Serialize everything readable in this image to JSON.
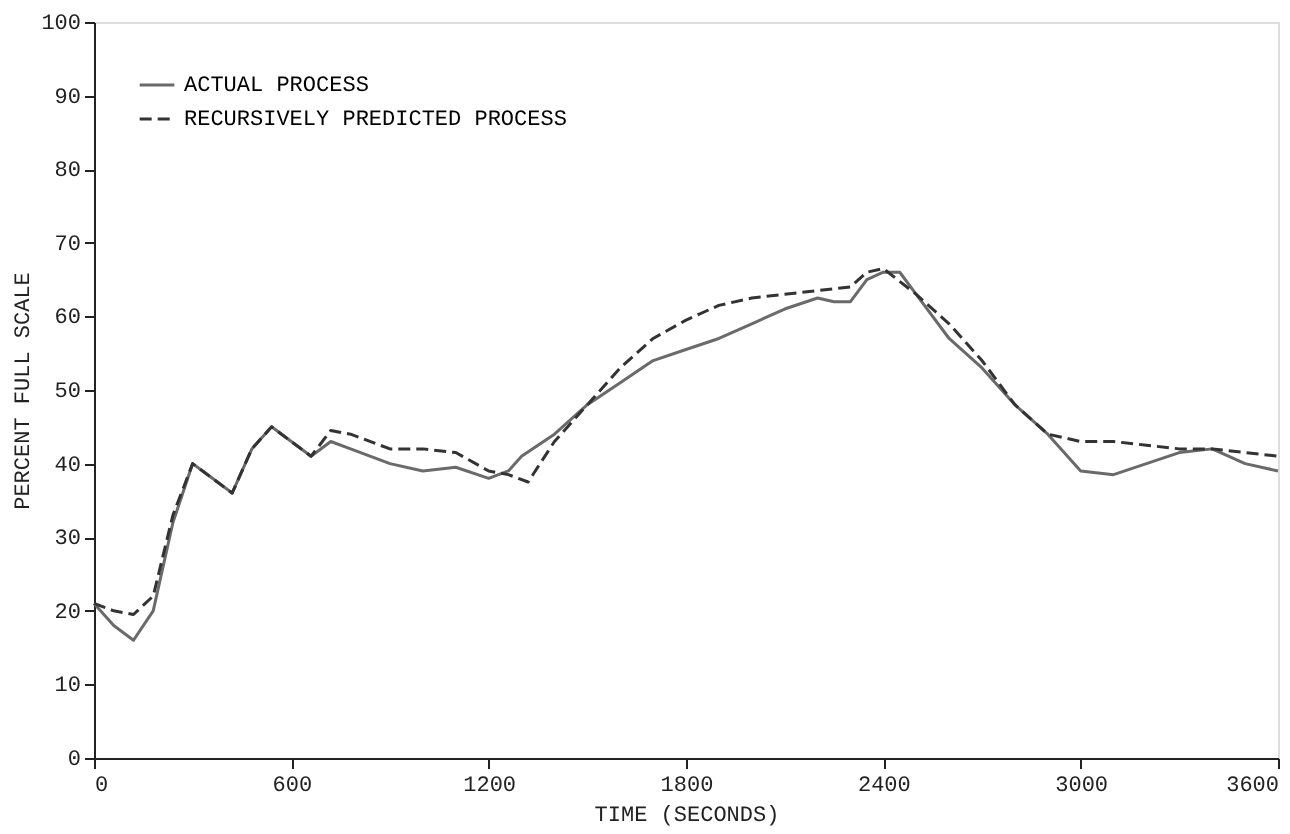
{
  "chart_data": {
    "type": "line",
    "xlabel": "TIME (SECONDS)",
    "ylabel": "PERCENT FULL SCALE",
    "xlim": [
      0,
      3600
    ],
    "xticks": [
      0,
      600,
      1200,
      1800,
      2400,
      3000,
      3600
    ],
    "ylim": [
      0,
      100
    ],
    "yticks": [
      0,
      10,
      20,
      30,
      40,
      50,
      60,
      70,
      80,
      90,
      100
    ],
    "grid": false,
    "legend": "top left",
    "marker": "none",
    "series": [
      {
        "name": "ACTUAL PROCESS",
        "color": "#6a6a6a",
        "line_style": "solid",
        "x": [
          0,
          60,
          120,
          180,
          240,
          300,
          360,
          420,
          480,
          540,
          600,
          660,
          720,
          780,
          900,
          1000,
          1100,
          1200,
          1260,
          1300,
          1400,
          1500,
          1600,
          1700,
          1800,
          1900,
          2000,
          2100,
          2200,
          2250,
          2300,
          2350,
          2400,
          2450,
          2500,
          2600,
          2700,
          2800,
          2900,
          3000,
          3100,
          3200,
          3300,
          3400,
          3500,
          3600
        ],
        "values": [
          21,
          18,
          16,
          20,
          32,
          40,
          38,
          36,
          42,
          45,
          43,
          41,
          43,
          42,
          40,
          39,
          39.5,
          38,
          39,
          41,
          44,
          48,
          51,
          54,
          55.5,
          57,
          59,
          61,
          62.5,
          62,
          62,
          65,
          66,
          66,
          63,
          57,
          53,
          48,
          44,
          39,
          38.5,
          40,
          41.5,
          42,
          40,
          39
        ]
      },
      {
        "name": "RECURSIVELY PREDICTED PROCESS",
        "color": "#333333",
        "line_style": "dashed",
        "x": [
          0,
          60,
          120,
          180,
          240,
          300,
          360,
          420,
          480,
          540,
          600,
          660,
          720,
          780,
          900,
          1000,
          1100,
          1200,
          1260,
          1320,
          1400,
          1500,
          1600,
          1700,
          1800,
          1900,
          2000,
          2100,
          2200,
          2300,
          2350,
          2400,
          2500,
          2600,
          2700,
          2800,
          2900,
          3000,
          3100,
          3200,
          3300,
          3400,
          3500,
          3600
        ],
        "values": [
          21,
          20,
          19.5,
          22,
          33,
          40,
          38,
          36,
          42,
          45,
          43,
          41,
          44.5,
          44,
          42,
          42,
          41.5,
          39,
          38.5,
          37.5,
          43,
          48,
          53,
          57,
          59.5,
          61.5,
          62.5,
          63,
          63.5,
          64,
          66,
          66.5,
          63,
          59,
          54,
          48,
          44,
          43,
          43,
          42.5,
          42,
          42,
          41.5,
          41
        ]
      }
    ]
  }
}
